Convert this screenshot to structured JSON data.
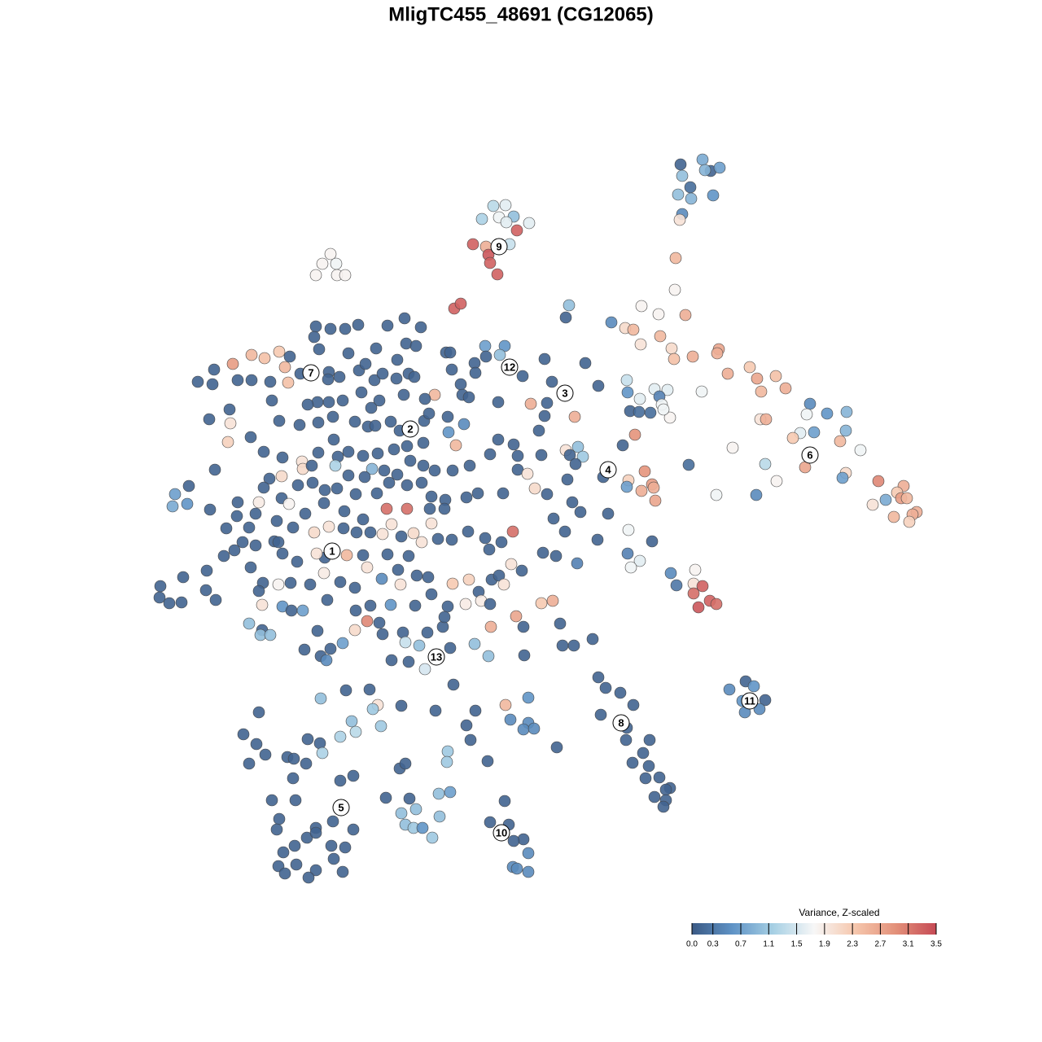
{
  "chart_data": {
    "type": "scatter",
    "title": "MligTC455_48691 (CG12065)",
    "xlim": [
      0,
      1280
    ],
    "ylim": [
      -1280,
      0
    ],
    "colorbar": {
      "title": "Variance, Z-scaled",
      "colorlim": [
        0,
        3.5
      ],
      "ticks": [
        {
          "value": 0,
          "label": "0.0"
        },
        0.3,
        0.7,
        1.1,
        1.5,
        1.9,
        2.3,
        2.7,
        3.1,
        3.5
      ],
      "colorscale": [
        "#3b5a85",
        "#5f93c6",
        "#a7d0e4",
        "#f7f7f7",
        "#f6c7ad",
        "#e3917a",
        "#c64a55"
      ]
    },
    "cluster_labels": {
      "labels": [
        "1",
        "2",
        "3",
        "4",
        "5",
        "6",
        "7",
        "8",
        "9",
        "10",
        "11",
        "12",
        "13"
      ],
      "x": [
        408,
        504,
        694,
        747,
        419,
        995,
        382,
        763,
        613,
        616,
        921,
        626,
        536
      ],
      "y": [
        -677,
        -527,
        -483,
        -577,
        -992,
        -559,
        -458,
        -888,
        -303,
        -1023,
        -861,
        -451,
        -807
      ]
    },
    "x": [
      836,
      863,
      873,
      884,
      866,
      838,
      848,
      833,
      849,
      876,
      838,
      835,
      606,
      621,
      592,
      613,
      631,
      650,
      622,
      581,
      597,
      626,
      635,
      600,
      602,
      611,
      406,
      396,
      413,
      388,
      414,
      424,
      558,
      566,
      699,
      695,
      751,
      788,
      809,
      842,
      830,
      829,
      768,
      778,
      787,
      811,
      825,
      828,
      851,
      883,
      881,
      894,
      921,
      930,
      953,
      965,
      935,
      862,
      770,
      771,
      804,
      820,
      810,
      813,
      786,
      799,
      823,
      774,
      785,
      780,
      815,
      934,
      941,
      995,
      1016,
      1040,
      991,
      983,
      1000,
      1039,
      974,
      1032,
      1057,
      900,
      989,
      940,
      1039,
      1035,
      954,
      929,
      880,
      1079,
      1110,
      1102,
      1088,
      1107,
      1114,
      1072,
      1126,
      1121,
      1098,
      1117,
      846,
      792,
      772,
      770,
      801,
      788,
      803,
      805,
      772,
      771,
      786,
      775,
      801,
      824,
      854,
      831,
      852,
      863,
      852,
      872,
      880,
      858,
      669,
      719,
      678,
      735,
      642,
      596,
      620,
      614,
      612,
      652,
      672,
      706,
      669,
      662,
      695,
      710,
      716,
      700,
      707,
      665,
      765,
      741,
      697,
      703,
      747,
      713,
      680,
      694,
      734,
      709,
      683,
      667,
      388,
      406,
      424,
      440,
      386,
      476,
      497,
      517,
      499,
      511,
      548,
      553,
      583,
      597,
      428,
      392,
      488,
      462,
      243,
      263,
      286,
      309,
      325,
      343,
      350,
      356,
      261,
      292,
      309,
      332,
      354,
      369,
      404,
      403,
      417,
      441,
      449,
      460,
      470,
      487,
      502,
      509,
      555,
      566,
      584,
      568,
      576,
      534,
      522,
      496,
      466,
      456,
      444,
      421,
      404,
      390,
      378,
      334,
      282,
      257,
      283,
      280,
      308,
      324,
      343,
      368,
      391,
      409,
      436,
      452,
      461,
      480,
      491,
      521,
      527,
      550,
      570,
      551,
      560,
      520,
      500,
      484,
      464,
      446,
      428,
      410,
      415,
      391,
      371,
      347,
      372,
      383,
      412,
      457,
      428,
      448,
      472,
      488,
      504,
      520,
      534,
      556,
      577,
      602,
      612,
      631,
      636,
      636,
      648,
      657,
      672,
      618,
      587,
      573,
      547,
      530,
      500,
      518,
      478,
      463,
      437,
      414,
      399,
      384,
      366,
      346,
      331,
      324,
      346,
      355,
      318,
      292,
      291,
      264,
      232,
      215,
      212,
      230,
      258,
      278,
      306,
      314,
      340,
      375,
      398,
      423,
      446,
      475,
      500,
      528,
      546,
      530,
      508,
      493,
      470,
      481,
      455,
      438,
      422,
      404,
      386,
      360,
      337,
      314,
      298,
      288,
      275,
      254,
      308,
      323,
      342,
      357,
      381,
      398,
      418,
      436,
      451,
      469,
      489,
      492,
      512,
      526,
      556,
      576,
      588,
      604,
      613,
      619,
      641,
      628,
      630,
      616,
      601,
      596,
      575,
      555,
      538,
      518,
      502,
      476,
      446,
      426,
      399,
      389,
      365,
      347,
      342,
      225,
      253,
      265,
      196,
      208,
      223,
      322,
      347,
      358,
      372,
      402,
      437,
      197,
      455,
      480,
      510,
      530,
      550,
      572,
      591,
      634,
      665,
      679,
      306,
      322,
      320,
      332,
      390,
      436,
      451,
      466,
      470,
      495,
      498,
      515,
      525,
      544,
      546,
      603,
      643,
      583,
      553,
      502,
      481,
      522,
      600,
      644,
      691,
      705,
      688,
      728,
      374,
      394,
      406,
      401,
      421,
      394,
      425,
      454,
      493,
      464,
      458,
      432,
      418,
      437,
      468,
      535,
      557,
      573,
      578,
      584,
      621,
      649,
      627,
      649,
      643,
      656,
      684,
      602,
      318,
      735,
      744,
      762,
      778,
      738,
      770,
      769,
      798,
      790,
      777,
      797,
      793,
      810,
      823,
      818,
      804,
      818,
      815,
      916,
      896,
      926,
      912,
      940,
      933,
      915,
      318,
      299,
      315,
      326,
      306,
      353,
      378,
      393,
      396,
      361,
      376,
      418,
      434,
      360,
      334,
      363,
      343,
      340,
      409,
      434,
      388,
      377,
      388,
      407,
      424,
      362,
      348,
      410,
      388,
      421,
      342,
      350,
      364,
      379,
      491,
      498,
      550,
      549,
      599,
      503,
      539,
      553,
      493,
      511,
      540,
      498,
      508,
      519,
      531,
      474,
      620,
      602,
      625,
      614,
      643,
      631,
      649,
      630,
      635,
      649
    ],
    "y": [
      -202,
      -196,
      -210,
      -206,
      -209,
      -216,
      -230,
      -239,
      -244,
      -240,
      -263,
      -270,
      -253,
      -252,
      -269,
      -267,
      -266,
      -274,
      -273,
      -300,
      -303,
      -300,
      -283,
      -313,
      -323,
      -337,
      -312,
      -324,
      -324,
      -338,
      -338,
      -338,
      -379,
      -373,
      -375,
      -390,
      -396,
      -376,
      -386,
      -387,
      -317,
      -356,
      -403,
      -405,
      -423,
      -413,
      -428,
      -441,
      -438,
      -429,
      -434,
      -459,
      -451,
      -465,
      -462,
      -477,
      -481,
      -481,
      -467,
      -482,
      -478,
      -479,
      -487,
      -497,
      -490,
      -507,
      -513,
      -505,
      -506,
      -534,
      -503,
      -515,
      -515,
      -496,
      -508,
      -506,
      -509,
      -532,
      -531,
      -529,
      -538,
      -542,
      -553,
      -550,
      -574,
      -570,
      -581,
      -587,
      -591,
      -608,
      -608,
      -591,
      -597,
      -605,
      -614,
      -612,
      -612,
      -620,
      -629,
      -632,
      -635,
      -641,
      -571,
      -579,
      -590,
      -598,
      -595,
      -603,
      -599,
      -615,
      -651,
      -680,
      -689,
      -697,
      -665,
      -704,
      -700,
      -719,
      -717,
      -720,
      -729,
      -738,
      -742,
      -746,
      -441,
      -446,
      -469,
      -474,
      -462,
      -425,
      -425,
      -436,
      -494,
      -496,
      -495,
      -512,
      -511,
      -529,
      -553,
      -549,
      -561,
      -559,
      -570,
      -559,
      -547,
      -586,
      -589,
      -617,
      -631,
      -629,
      -637,
      -653,
      -663,
      -692,
      -683,
      -679,
      -401,
      -404,
      -404,
      -399,
      -414,
      -400,
      -391,
      -402,
      -422,
      -425,
      -433,
      -433,
      -446,
      -438,
      -434,
      -429,
      -442,
      -428,
      -469,
      -454,
      -447,
      -436,
      -440,
      -432,
      -451,
      -438,
      -472,
      -467,
      -467,
      -469,
      -470,
      -459,
      -457,
      -466,
      -463,
      -455,
      -447,
      -467,
      -459,
      -465,
      -459,
      -463,
      -454,
      -472,
      -458,
      -485,
      -488,
      -485,
      -490,
      -485,
      -492,
      -501,
      -482,
      -492,
      -494,
      -494,
      -497,
      -492,
      -503,
      -515,
      -520,
      -543,
      -537,
      -555,
      -517,
      -522,
      -519,
      -512,
      -518,
      -524,
      -523,
      -518,
      -529,
      -517,
      -508,
      -512,
      -521,
      -531,
      -547,
      -544,
      -548,
      -552,
      -557,
      -560,
      -555,
      -540,
      -561,
      -556,
      -567,
      -562,
      -576,
      -572,
      -572,
      -576,
      -584,
      -586,
      -578,
      -583,
      -566,
      -572,
      -578,
      -578,
      -572,
      -558,
      -540,
      -546,
      -560,
      -577,
      -582,
      -600,
      -607,
      -606,
      -606,
      -611,
      -614,
      -610,
      -596,
      -593,
      -593,
      -606,
      -607,
      -600,
      -602,
      -593,
      -596,
      -585,
      -588,
      -599,
      -612,
      -619,
      -617,
      -617,
      -634,
      -577,
      -597,
      -607,
      -622,
      -619,
      -626,
      -649,
      -648,
      -631,
      -640,
      -631,
      -618,
      -628,
      -638,
      -625,
      -625,
      -625,
      -625,
      -643,
      -655,
      -659,
      -656,
      -644,
      -654,
      -654,
      -649,
      -647,
      -654,
      -648,
      -665,
      -670,
      -666,
      -676,
      -683,
      -701,
      -697,
      -716,
      -718,
      -716,
      -718,
      -704,
      -715,
      -722,
      -697,
      -711,
      -700,
      -718,
      -707,
      -709,
      -717,
      -712,
      -727,
      -712,
      -707,
      -718,
      -701,
      -693,
      -653,
      -666,
      -675,
      -661,
      -653,
      -663,
      -662,
      -666,
      -683,
      -681,
      -682,
      -682,
      -685,
      -680,
      -690,
      -680,
      -666,
      -709,
      -725,
      -737,
      -734,
      -741,
      -740,
      -743,
      -745,
      -750,
      -750,
      -737,
      -750,
      -720,
      -744,
      -743,
      -744,
      -730,
      -745,
      -742,
      -738,
      -757,
      -741,
      -738,
      -766,
      -774,
      -780,
      -780,
      -775,
      -774,
      -763,
      -765,
      -779,
      -777,
      -789,
      -793,
      -777,
      -770,
      -758,
      -770,
      -770,
      -791,
      -796,
      -813,
      -811,
      -822,
      -806,
      -805,
      -793,
      -793,
      -766,
      -785,
      -798,
      -806,
      -797,
      -811,
      -790,
      -858,
      -848,
      -847,
      -867,
      -866,
      -871,
      -886,
      -905,
      -899,
      -892,
      -873,
      -841,
      -891,
      -909,
      -873,
      -866,
      -857,
      -884,
      -888,
      -896,
      -895,
      -918,
      -742,
      -726,
      -832,
      -845,
      -851,
      -866,
      -878,
      -894,
      -909,
      -909,
      -925,
      -937,
      -941,
      -956,
      -955,
      -968,
      -970,
      -979,
      -983,
      -991,
      -837,
      -847,
      -843,
      -861,
      -860,
      -871,
      -875,
      -875,
      -902,
      -914,
      -927,
      -938,
      -930,
      -908,
      -913,
      -925,
      -932,
      -938,
      -959,
      -953,
      -956,
      -983,
      -983,
      -1006,
      -1019,
      -1009,
      -1019,
      -1017,
      -1029,
      -1023,
      -1039,
      -1041,
      -1039,
      -1047,
      -1055,
      -1069,
      -1071,
      -1064,
      -1073,
      -1062,
      -1078,
      -944,
      -938,
      -923,
      -936,
      -935,
      -981,
      -975,
      -973,
      -999,
      -994,
      -1003,
      -1013,
      -1017,
      -1017,
      -1029,
      -980,
      -984,
      -1010,
      -1013,
      -1022,
      -1031,
      -1033,
      -1048,
      -1065,
      -1067,
      -1071
    ],
    "values": [
      0.1,
      0.8,
      0.1,
      0.7,
      0.9,
      1.0,
      0.2,
      1.0,
      0.9,
      0.6,
      0.5,
      2.0,
      1.3,
      1.6,
      1.2,
      1.7,
      1.0,
      1.6,
      1.6,
      3.3,
      2.6,
      1.4,
      3.3,
      3.4,
      3.3,
      3.3,
      1.8,
      1.8,
      1.7,
      1.8,
      1.8,
      1.8,
      3.3,
      3.3,
      1.0,
      0.1,
      0.5,
      1.8,
      1.8,
      2.6,
      2.5,
      1.8,
      2.1,
      2.5,
      2.0,
      2.5,
      2.1,
      2.4,
      2.6,
      2.7,
      2.6,
      2.6,
      2.3,
      2.7,
      2.4,
      2.6,
      2.5,
      1.7,
      1.4,
      0.6,
      1.6,
      1.6,
      0.4,
      1.7,
      1.6,
      0.2,
      1.8,
      0.1,
      0.2,
      2.9,
      1.7,
      2.0,
      2.6,
      0.5,
      0.6,
      0.9,
      1.7,
      1.6,
      0.7,
      0.9,
      2.3,
      2.5,
      1.7,
      1.8,
      2.7,
      1.3,
      2.1,
      0.7,
      1.8,
      0.5,
      1.7,
      3.0,
      2.6,
      2.3,
      0.8,
      2.8,
      2.5,
      2.0,
      2.6,
      2.6,
      2.5,
      2.2,
      0.2,
      2.9,
      2.2,
      0.7,
      2.8,
      2.6,
      2.6,
      2.7,
      1.7,
      0.4,
      1.6,
      1.7,
      0.1,
      0.5,
      1.8,
      0.3,
      2.0,
      3.3,
      3.2,
      3.3,
      3.2,
      3.4,
      0.1,
      0.1,
      0.1,
      0.1,
      0.1,
      0.7,
      0.6,
      1.0,
      0.1,
      2.6,
      0.1,
      2.6,
      0.1,
      0.1,
      2.0,
      1.0,
      1.1,
      0.1,
      0.1,
      0.1,
      0.1,
      0.1,
      0.1,
      0.1,
      0.1,
      0.1,
      0.1,
      0.1,
      0.1,
      0.4,
      0.1,
      0.1,
      0.1,
      0.1,
      0.1,
      0.1,
      0.1,
      0.1,
      0.1,
      0.1,
      0.1,
      0.1,
      0.1,
      0.1,
      0.1,
      0.1,
      0.1,
      0.1,
      0.1,
      0.1,
      0.1,
      0.1,
      2.8,
      2.5,
      2.4,
      2.3,
      2.5,
      0.1,
      0.1,
      0.1,
      0.1,
      0.1,
      2.4,
      0.1,
      0.1,
      0.1,
      0.1,
      0.1,
      0.1,
      0.1,
      0.1,
      0.1,
      0.1,
      0.1,
      0.1,
      0.1,
      0.1,
      0.1,
      0.1,
      2.5,
      0.1,
      0.1,
      0.1,
      0.1,
      0.1,
      0.1,
      0.1,
      0.1,
      0.1,
      0.1,
      0.1,
      0.1,
      2.0,
      2.2,
      0.1,
      0.1,
      0.1,
      0.1,
      0.1,
      0.1,
      0.1,
      0.1,
      0.1,
      0.1,
      0.1,
      0.1,
      0.1,
      0.1,
      0.5,
      0.6,
      2.5,
      0.1,
      0.1,
      0.1,
      0.1,
      0.1,
      0.1,
      0.1,
      0.1,
      0.1,
      2.0,
      0.1,
      2.1,
      0.1,
      1.2,
      0.9,
      0.1,
      0.1,
      0.1,
      0.1,
      0.1,
      0.1,
      0.1,
      0.1,
      0.1,
      0.1,
      0.1,
      0.1,
      0.1,
      0.1,
      2.0,
      2.1,
      0.1,
      0.1,
      0.1,
      0.1,
      0.1,
      0.1,
      0.1,
      0.1,
      0.1,
      0.1,
      0.1,
      0.1,
      0.1,
      0.1,
      0.1,
      2.1,
      0.1,
      0.1,
      0.1,
      1.8,
      1.9,
      0.1,
      0.1,
      0.1,
      0.1,
      0.7,
      0.8,
      0.6,
      0.1,
      0.1,
      0.1,
      0.1,
      0.1,
      0.1,
      0.1,
      0.1,
      0.1,
      3.2,
      3.2,
      0.1,
      0.1,
      2.0,
      2.1,
      0.1,
      2.0,
      2.0,
      0.1,
      0.1,
      0.1,
      2.0,
      2.1,
      0.1,
      0.1,
      0.1,
      0.1,
      0.1,
      0.1,
      0.1,
      0.1,
      0.1,
      1.8,
      0.1,
      0.1,
      1.9,
      0.1,
      0.1,
      2.0,
      0.5,
      0.1,
      2.0,
      0.1,
      0.1,
      2.3,
      2.2,
      0.1,
      0.1,
      0.1,
      2.0,
      0.1,
      2.0,
      3.2,
      0.1,
      0.1,
      0.1,
      0.1,
      0.1,
      0.1,
      2.0,
      0.1,
      0.1,
      0.1,
      2.5,
      0.1,
      2.0,
      0.1,
      0.1,
      0.1,
      0.1,
      0.1,
      0.1,
      0.1,
      0.1,
      0.1,
      2.0,
      0.6,
      0.1,
      0.7,
      0.1,
      0.1,
      0.1,
      0.1,
      0.6,
      0.1,
      0.1,
      0.1,
      1.9,
      1.9,
      2.7,
      2.3,
      2.6,
      1.0,
      0.1,
      1.0,
      1.0,
      0.1,
      2.1,
      3.0,
      0.1,
      0.1,
      0.1,
      1.4,
      1.0,
      0.1,
      0.1,
      0.1,
      2.6,
      0.1,
      1.0,
      0.1,
      0.1,
      0.1,
      1.5,
      1.0,
      0.1,
      0.1,
      0.1,
      0.1,
      0.1,
      0.1,
      0.1,
      0.1,
      0.5,
      0.7,
      1.0,
      0.1,
      0.1,
      0.1,
      2.0,
      1.1,
      1.0,
      1.2,
      1.3,
      1.1,
      0.1,
      0.1,
      0.1,
      0.1,
      0.1,
      2.5,
      0.6,
      0.5,
      0.5,
      0.5,
      0.5,
      0.1,
      0.1,
      0.1,
      0.1,
      0.1,
      0.1,
      0.1,
      0.1,
      0.1,
      0.1,
      0.1,
      0.1,
      0.1,
      0.1,
      0.1,
      0.1,
      0.1,
      0.1,
      0.1,
      0.1,
      0.1,
      0.1,
      0.5,
      0.6,
      0.6,
      0.1,
      0.5,
      0.5,
      0.1,
      0.1,
      0.1,
      0.1,
      0.1,
      0.1,
      0.1,
      0.1,
      1.2,
      0.1,
      0.1,
      0.1,
      0.1,
      0.1,
      0.1,
      0.1,
      0.1,
      0.1,
      0.1,
      0.1,
      0.1,
      0.1,
      0.1,
      0.1,
      0.1,
      0.1,
      0.1,
      0.1,
      0.1,
      0.1,
      0.1,
      0.1,
      0.1,
      0.1,
      0.1,
      0.1,
      1.1,
      1.1,
      0.1,
      0.1,
      1.0,
      0.7,
      1.0,
      1.0,
      1.0,
      1.0,
      1.1,
      0.6,
      1.1,
      0.1,
      0.1,
      0.1,
      0.1,
      0.1,
      0.1,
      0.1,
      0.5,
      0.5,
      0.5,
      0.5
    ]
  }
}
